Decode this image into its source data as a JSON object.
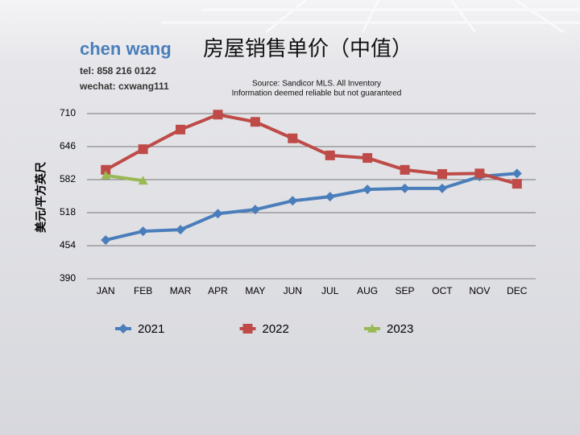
{
  "chart_data": {
    "type": "line",
    "title": "房屋销售单价（中值）",
    "author": "chen wang",
    "contact": [
      "tel: 858 216 0122",
      "wechat: cxwang111"
    ],
    "source": [
      "Source: Sandicor MLS. All Inventory",
      "Information deemed reliable but not guaranteed"
    ],
    "y_label": "美元/平方英尺",
    "categories": [
      "JAN",
      "FEB",
      "MAR",
      "APR",
      "MAY",
      "JUN",
      "JUL",
      "AUG",
      "SEP",
      "OCT",
      "NOV",
      "DEC"
    ],
    "series": [
      {
        "name": "2021",
        "color": "#4a7ebb",
        "marker": "diamond",
        "values": [
          465,
          482,
          485,
          516,
          524,
          541,
          549,
          563,
          565,
          565,
          588,
          594
        ]
      },
      {
        "name": "2022",
        "color": "#be4b48",
        "marker": "square",
        "values": [
          601,
          641,
          679,
          708,
          694,
          662,
          629,
          624,
          601,
          593,
          594,
          574
        ]
      },
      {
        "name": "2023",
        "color": "#98b954",
        "marker": "triangle",
        "values": [
          590,
          580,
          null,
          null,
          null,
          null,
          null,
          null,
          null,
          null,
          null,
          null
        ]
      }
    ],
    "ylim": [
      390,
      710
    ],
    "yticks": [
      390,
      454,
      518,
      582,
      646,
      710
    ],
    "grid": true,
    "legend": "bottom"
  }
}
